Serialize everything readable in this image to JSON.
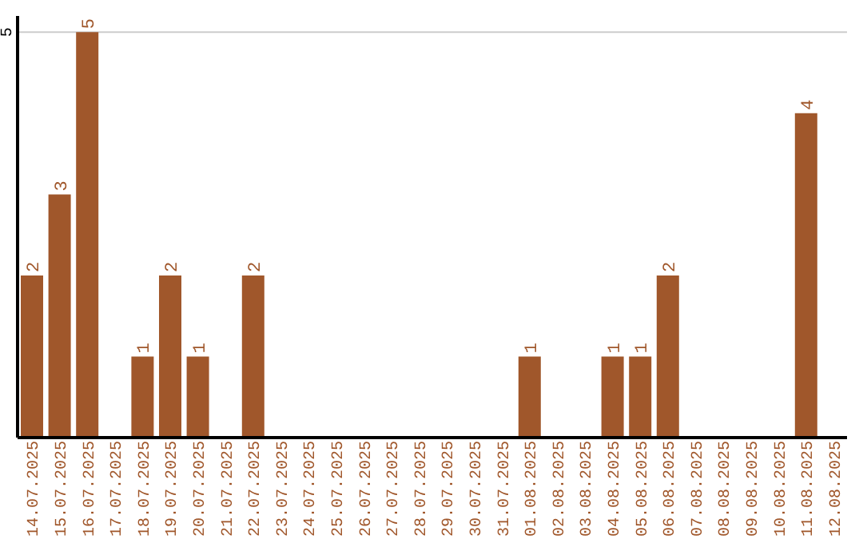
{
  "chart_data": {
    "type": "bar",
    "categories": [
      "14.07.2025",
      "15.07.2025",
      "16.07.2025",
      "17.07.2025",
      "18.07.2025",
      "19.07.2025",
      "20.07.2025",
      "21.07.2025",
      "22.07.2025",
      "23.07.2025",
      "24.07.2025",
      "25.07.2025",
      "26.07.2025",
      "27.07.2025",
      "28.07.2025",
      "29.07.2025",
      "30.07.2025",
      "31.07.2025",
      "01.08.2025",
      "02.08.2025",
      "03.08.2025",
      "04.08.2025",
      "05.08.2025",
      "06.08.2025",
      "07.08.2025",
      "08.08.2025",
      "09.08.2025",
      "10.08.2025",
      "11.08.2025",
      "12.08.2025"
    ],
    "values": [
      2,
      3,
      5,
      0,
      1,
      2,
      1,
      0,
      2,
      0,
      0,
      0,
      0,
      0,
      0,
      0,
      0,
      0,
      1,
      0,
      0,
      1,
      1,
      2,
      0,
      0,
      0,
      0,
      4,
      0
    ],
    "value_labels": [
      "2",
      "3",
      "5",
      null,
      "1",
      "2",
      "1",
      null,
      "2",
      null,
      null,
      null,
      null,
      null,
      null,
      null,
      null,
      null,
      "1",
      null,
      null,
      "1",
      "1",
      "2",
      null,
      null,
      null,
      null,
      "4",
      null
    ],
    "color": "#a0572b",
    "ylim": [
      0,
      5.2
    ],
    "yticks": [
      5
    ],
    "grid": "y"
  }
}
